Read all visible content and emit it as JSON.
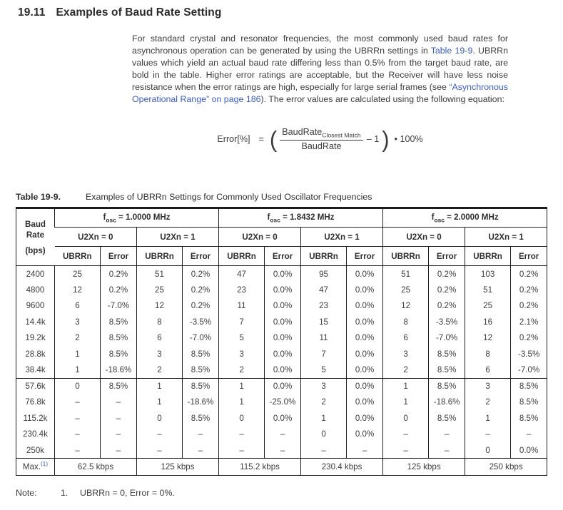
{
  "heading": {
    "number": "19.11",
    "title": "Examples of Baud Rate Setting"
  },
  "paragraph": {
    "part1": "For standard crystal and resonator frequencies, the most commonly used baud rates for asynchronous operation can be generated by using the UBRRn settings in ",
    "link1": "Table 19-9",
    "part2": ". UBRRn values which yield an actual baud rate differing less than 0.5% from the target baud rate, are bold in the table. Higher error ratings are acceptable, but the Receiver will have less noise resistance when the error ratings are high, especially for large serial frames (see ",
    "link2": "“Asynchronous Operational Range” on page 186",
    "part3": "). The error values are calculated using the following equation:"
  },
  "equation": {
    "lhs": "Error[%]",
    "equals": "=",
    "open_paren": "(",
    "numerator_base": "BaudRate",
    "numerator_sub": "Closest Match",
    "denominator": "BaudRate",
    "minus_one": "– 1",
    "close_paren": ")",
    "rhs": "• 100%"
  },
  "table": {
    "label": "Table 19-9.",
    "caption": "Examples of UBRRn Settings for Commonly Used Oscillator Frequencies",
    "row_header_lines": [
      "Baud",
      "Rate",
      "(bps)"
    ],
    "freq_headers": [
      {
        "base": "f",
        "sub": "osc",
        "rest": " = 1.0000 MHz"
      },
      {
        "base": "f",
        "sub": "osc",
        "rest": " = 1.8432 MHz"
      },
      {
        "base": "f",
        "sub": "osc",
        "rest": " = 2.0000 MHz"
      }
    ],
    "u2x_headers": [
      "U2Xn = 0",
      "U2Xn = 1",
      "U2Xn = 0",
      "U2Xn = 1",
      "U2Xn = 0",
      "U2Xn = 1"
    ],
    "col_headers": [
      "UBRRn",
      "Error"
    ],
    "groups": [
      {
        "rows": [
          {
            "baud": "2400",
            "cells": [
              "25",
              "0.2%",
              "51",
              "0.2%",
              "47",
              "0.0%",
              "95",
              "0.0%",
              "51",
              "0.2%",
              "103",
              "0.2%"
            ]
          },
          {
            "baud": "4800",
            "cells": [
              "12",
              "0.2%",
              "25",
              "0.2%",
              "23",
              "0.0%",
              "47",
              "0.0%",
              "25",
              "0.2%",
              "51",
              "0.2%"
            ]
          },
          {
            "baud": "9600",
            "cells": [
              "6",
              "-7.0%",
              "12",
              "0.2%",
              "11",
              "0.0%",
              "23",
              "0.0%",
              "12",
              "0.2%",
              "25",
              "0.2%"
            ]
          },
          {
            "baud": "14.4k",
            "cells": [
              "3",
              "8.5%",
              "8",
              "-3.5%",
              "7",
              "0.0%",
              "15",
              "0.0%",
              "8",
              "-3.5%",
              "16",
              "2.1%"
            ]
          },
          {
            "baud": "19.2k",
            "cells": [
              "2",
              "8.5%",
              "6",
              "-7.0%",
              "5",
              "0.0%",
              "11",
              "0.0%",
              "6",
              "-7.0%",
              "12",
              "0.2%"
            ]
          },
          {
            "baud": "28.8k",
            "cells": [
              "1",
              "8.5%",
              "3",
              "8.5%",
              "3",
              "0.0%",
              "7",
              "0.0%",
              "3",
              "8.5%",
              "8",
              "-3.5%"
            ]
          },
          {
            "baud": "38.4k",
            "cells": [
              "1",
              "-18.6%",
              "2",
              "8.5%",
              "2",
              "0.0%",
              "5",
              "0.0%",
              "2",
              "8.5%",
              "6",
              "-7.0%"
            ]
          }
        ]
      },
      {
        "rows": [
          {
            "baud": "57.6k",
            "cells": [
              "0",
              "8.5%",
              "1",
              "8.5%",
              "1",
              "0.0%",
              "3",
              "0.0%",
              "1",
              "8.5%",
              "3",
              "8.5%"
            ]
          },
          {
            "baud": "76.8k",
            "cells": [
              "–",
              "–",
              "1",
              "-18.6%",
              "1",
              "-25.0%",
              "2",
              "0.0%",
              "1",
              "-18.6%",
              "2",
              "8.5%"
            ]
          },
          {
            "baud": "115.2k",
            "cells": [
              "–",
              "–",
              "0",
              "8.5%",
              "0",
              "0.0%",
              "1",
              "0.0%",
              "0",
              "8.5%",
              "1",
              "8.5%"
            ]
          },
          {
            "baud": "230.4k",
            "cells": [
              "–",
              "–",
              "–",
              "–",
              "–",
              "–",
              "0",
              "0.0%",
              "–",
              "–",
              "–",
              "–"
            ]
          },
          {
            "baud": "250k",
            "cells": [
              "–",
              "–",
              "–",
              "–",
              "–",
              "–",
              "–",
              "–",
              "–",
              "–",
              "0",
              "0.0%"
            ]
          }
        ]
      }
    ],
    "max_row": {
      "label": "Max.",
      "sup": "(1)",
      "values": [
        "62.5 kbps",
        "125 kbps",
        "115.2 kbps",
        "230.4 kbps",
        "125 kbps",
        "250 kbps"
      ]
    }
  },
  "note": {
    "label": "Note:",
    "number": "1.",
    "text": "UBRRn = 0, Error = 0%."
  }
}
